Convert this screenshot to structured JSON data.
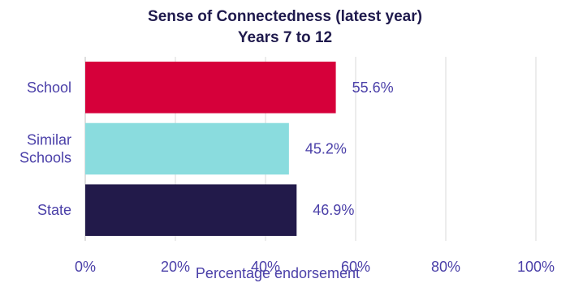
{
  "chart_data": {
    "type": "bar",
    "orientation": "horizontal",
    "title": "Sense of Connectedness (latest year)",
    "subtitle": "Years 7 to 12",
    "xlabel": "Percentage endorsement",
    "ylabel": "",
    "xlim": [
      0,
      100
    ],
    "x_ticks": [
      "0%",
      "20%",
      "40%",
      "60%",
      "80%",
      "100%"
    ],
    "x_tick_values": [
      0,
      20,
      40,
      60,
      80,
      100
    ],
    "grid": true,
    "legend": "none",
    "categories": [
      {
        "label": "School",
        "lines": [
          "School"
        ],
        "value": 55.6,
        "value_label": "55.6%",
        "color": "#d6003a"
      },
      {
        "label": "Similar Schools",
        "lines": [
          "Similar",
          "Schools"
        ],
        "value": 45.2,
        "value_label": "45.2%",
        "color": "#8adcde"
      },
      {
        "label": "State",
        "lines": [
          "State"
        ],
        "value": 46.9,
        "value_label": "46.9%",
        "color": "#221a4a"
      }
    ]
  }
}
